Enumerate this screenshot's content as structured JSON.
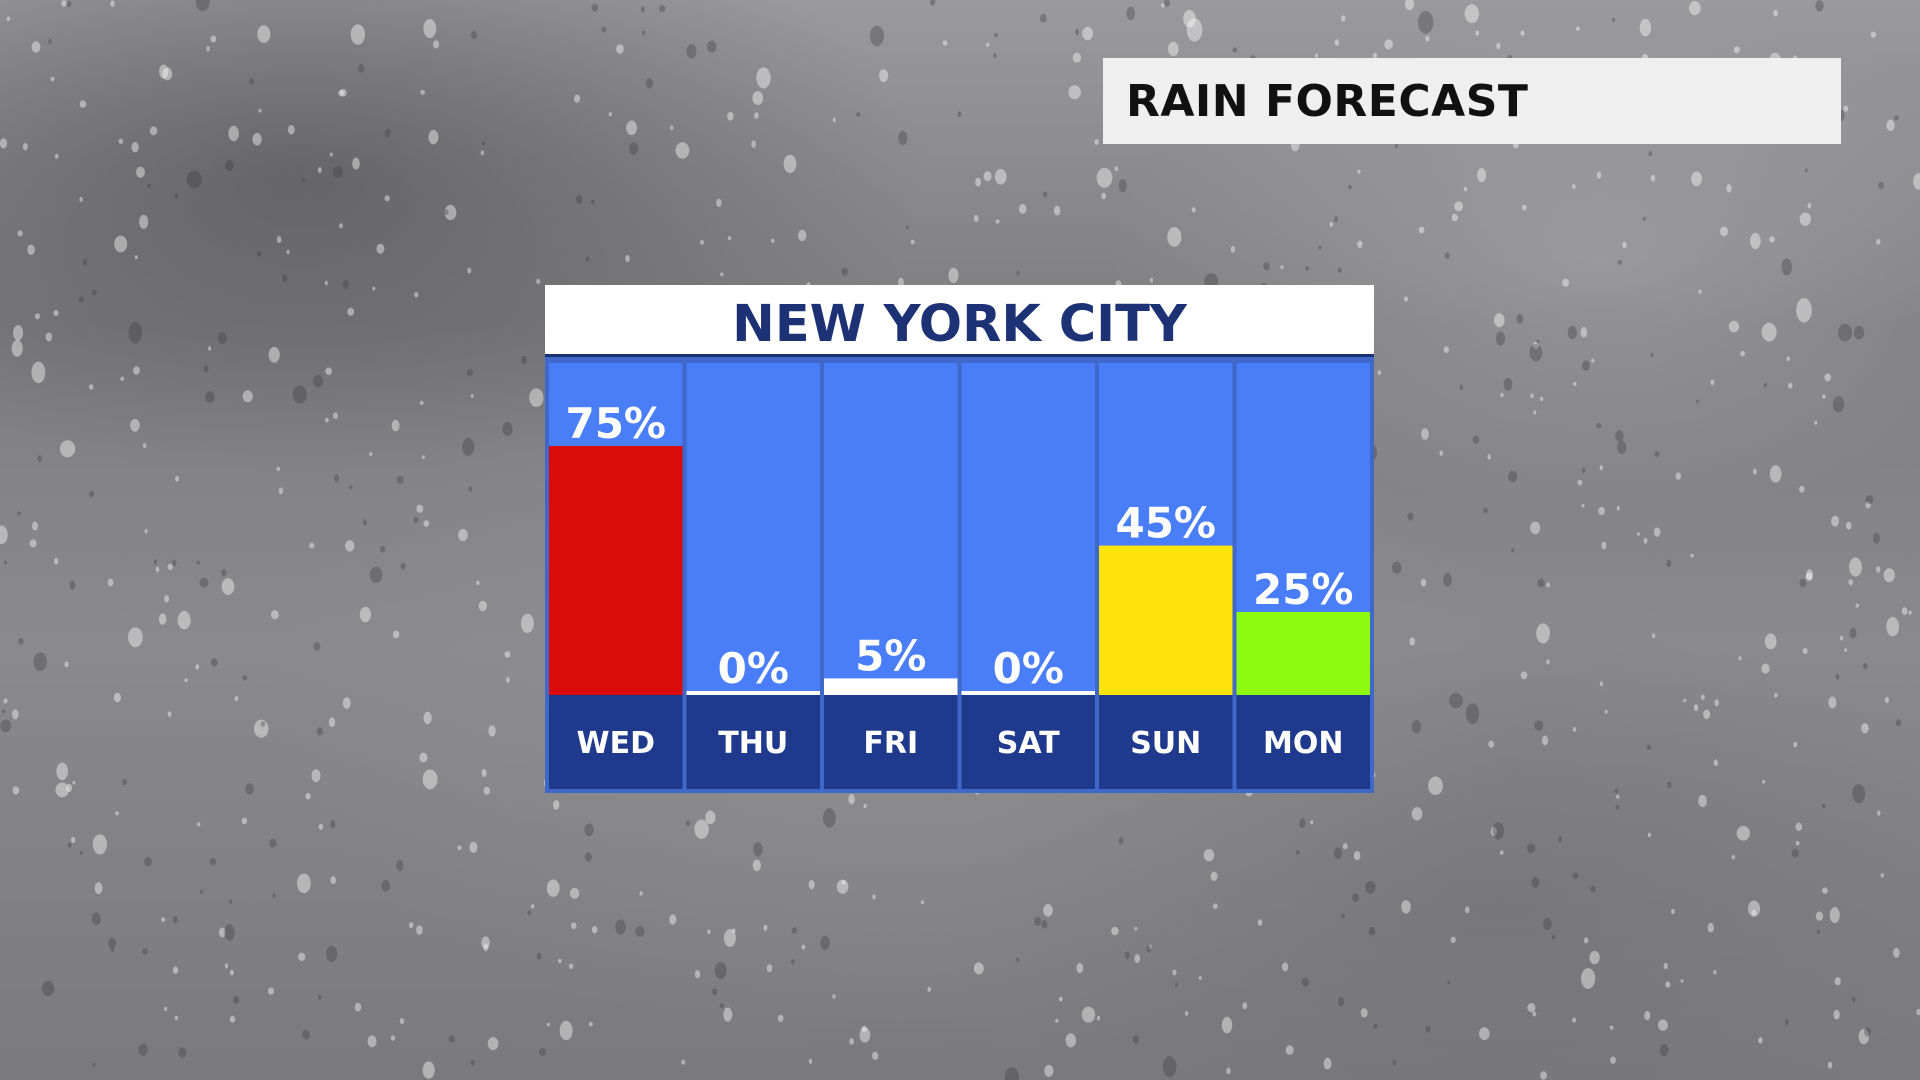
{
  "header": {
    "title": "RAIN FORECAST"
  },
  "panel": {
    "location": "NEW YORK CITY"
  },
  "colors": {
    "column_background": "#4a7ef8",
    "day_band": "#1f3a8c",
    "panel_border": "#3f68c9",
    "value_label": "#ffffff",
    "high": "#dc0b0b",
    "medium": "#ffe40c",
    "low": "#8cfb0f",
    "trace": "#ffffff"
  },
  "chart_data": {
    "type": "bar",
    "title": "NEW YORK CITY",
    "categories": [
      "WED",
      "THU",
      "FRI",
      "SAT",
      "SUN",
      "MON"
    ],
    "values": [
      75,
      0,
      5,
      0,
      45,
      25
    ],
    "value_labels": [
      "75%",
      "0%",
      "5%",
      "0%",
      "45%",
      "25%"
    ],
    "bar_colors": [
      "#dc0b0b",
      "#ffffff",
      "#ffffff",
      "#ffffff",
      "#ffe40c",
      "#8cfb0f"
    ],
    "ylim": [
      0,
      100
    ],
    "grid": false,
    "legend": "none"
  }
}
